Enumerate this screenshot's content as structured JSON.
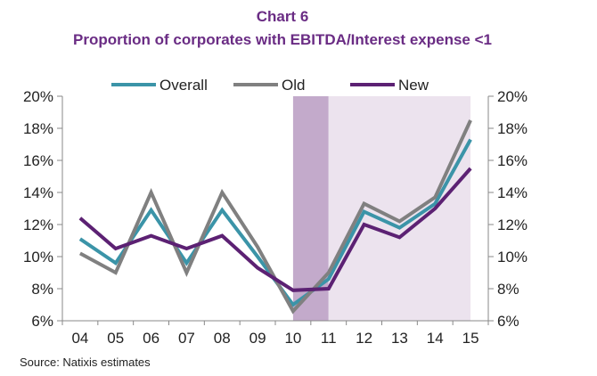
{
  "chart_data": {
    "type": "line",
    "title": "Chart 6",
    "subtitle": "Proportion of corporates with EBITDA/Interest expense <1",
    "source": "Source: Natixis estimates",
    "categories": [
      "04",
      "05",
      "06",
      "07",
      "08",
      "09",
      "10",
      "11",
      "12",
      "13",
      "14",
      "15"
    ],
    "y_ticks": [
      "6%",
      "8%",
      "10%",
      "12%",
      "14%",
      "16%",
      "18%",
      "20%"
    ],
    "ylim": [
      6,
      20
    ],
    "legend_position": "top",
    "series": [
      {
        "name": "Overall",
        "color": "#3b94a8",
        "values": [
          11.1,
          9.6,
          12.9,
          9.6,
          12.9,
          10.0,
          7.0,
          8.6,
          12.8,
          11.8,
          13.3,
          17.3
        ]
      },
      {
        "name": "Old",
        "color": "#808080",
        "values": [
          10.2,
          9.0,
          14.0,
          9.0,
          14.0,
          10.6,
          6.6,
          9.0,
          13.3,
          12.2,
          13.7,
          18.5
        ]
      },
      {
        "name": "New",
        "color": "#5c2173",
        "values": [
          12.4,
          10.5,
          11.3,
          10.5,
          11.3,
          9.3,
          7.9,
          8.0,
          12.0,
          11.2,
          13.0,
          15.5
        ]
      }
    ],
    "shaded_regions": [
      {
        "from": "10",
        "to": "11",
        "color": "#c3aacb"
      },
      {
        "from": "11",
        "to": "15",
        "color": "#ece3ee"
      }
    ]
  }
}
